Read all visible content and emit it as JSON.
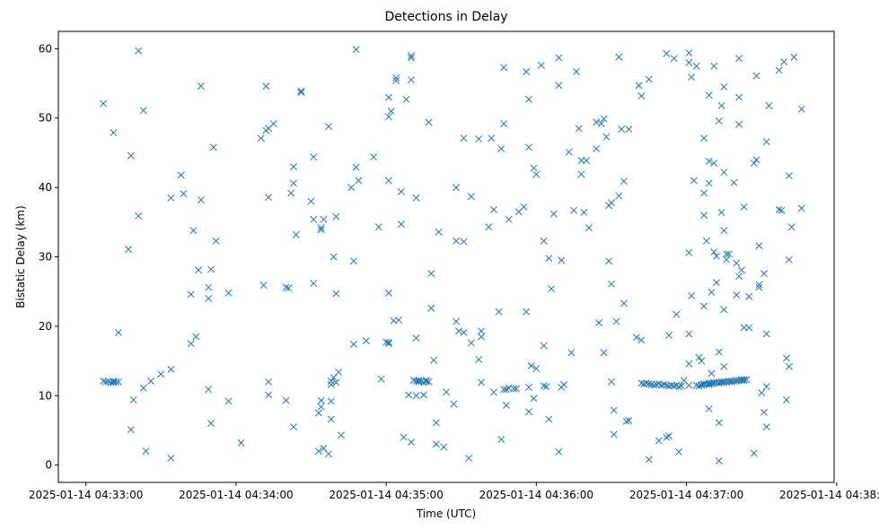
{
  "chart_data": {
    "type": "scatter",
    "title": "Detections in Delay",
    "xlabel": "Time (UTC)",
    "ylabel": "Bistatic Delay (km)",
    "x_unit": "seconds after 2025-01-14 04:33:00 UTC",
    "xlim": [
      -11,
      299
    ],
    "ylim": [
      -2.5,
      62.5
    ],
    "x_ticks": [
      {
        "value": 0,
        "label": "2025-01-14 04:33:00"
      },
      {
        "value": 60,
        "label": "2025-01-14 04:34:00"
      },
      {
        "value": 120,
        "label": "2025-01-14 04:35:00"
      },
      {
        "value": 180,
        "label": "2025-01-14 04:36:00"
      },
      {
        "value": 240,
        "label": "2025-01-14 04:37:00"
      },
      {
        "value": 300,
        "label": "2025-01-14 04:38:00"
      }
    ],
    "y_ticks": [
      0,
      10,
      20,
      30,
      40,
      50,
      60
    ],
    "marker": "x",
    "color": "#1f77b4",
    "grid": false,
    "points": [
      [
        7,
        52.1
      ],
      [
        11,
        47.9
      ],
      [
        13,
        19.1
      ],
      [
        17,
        31.1
      ],
      [
        18,
        44.6
      ],
      [
        18,
        5.1
      ],
      [
        19,
        9.4
      ],
      [
        21,
        59.7
      ],
      [
        21,
        35.9
      ],
      [
        23,
        51.1
      ],
      [
        23,
        11.1
      ],
      [
        24,
        2
      ],
      [
        26,
        12.1
      ],
      [
        30,
        13.1
      ],
      [
        34,
        1
      ],
      [
        34,
        38.5
      ],
      [
        34,
        13.8
      ],
      [
        38,
        41.8
      ],
      [
        39,
        39.1
      ],
      [
        42,
        17.5
      ],
      [
        42,
        24.6
      ],
      [
        43,
        33.8
      ],
      [
        44,
        18.5
      ],
      [
        45,
        28.1
      ],
      [
        46,
        38.2
      ],
      [
        46,
        54.6
      ],
      [
        49,
        25.6
      ],
      [
        49,
        24
      ],
      [
        49,
        10.9
      ],
      [
        50,
        28.2
      ],
      [
        50,
        6
      ],
      [
        51,
        45.8
      ],
      [
        52,
        32.3
      ],
      [
        57,
        24.8
      ],
      [
        57,
        9.2
      ],
      [
        62,
        3.2
      ],
      [
        70,
        47.1
      ],
      [
        71,
        25.9
      ],
      [
        72,
        54.6
      ],
      [
        72,
        48.2
      ],
      [
        73,
        48.5
      ],
      [
        73,
        38.6
      ],
      [
        73,
        12
      ],
      [
        73,
        10.1
      ],
      [
        75,
        49.2
      ],
      [
        80,
        9.3
      ],
      [
        80,
        25.6
      ],
      [
        81,
        25.5
      ],
      [
        82,
        39.2
      ],
      [
        83,
        43
      ],
      [
        83,
        40.6
      ],
      [
        83,
        5.5
      ],
      [
        84,
        33.2
      ],
      [
        86,
        53.9
      ],
      [
        86,
        53.7
      ],
      [
        90,
        38
      ],
      [
        91,
        44.4
      ],
      [
        91,
        35.4
      ],
      [
        91,
        26.2
      ],
      [
        93,
        2
      ],
      [
        93,
        7.5
      ],
      [
        94,
        34.2
      ],
      [
        94,
        33.9
      ],
      [
        94,
        9.3
      ],
      [
        94,
        8.4
      ],
      [
        95,
        2.4
      ],
      [
        95,
        35.4
      ],
      [
        97,
        1.6
      ],
      [
        97,
        48.8
      ],
      [
        98,
        12.1
      ],
      [
        98,
        11.6
      ],
      [
        98,
        9.2
      ],
      [
        98,
        6.6
      ],
      [
        99,
        30
      ],
      [
        99,
        12.6
      ],
      [
        100,
        24.7
      ],
      [
        100,
        35.8
      ],
      [
        100,
        11.9
      ],
      [
        101,
        13.4
      ],
      [
        102,
        4.3
      ],
      [
        106,
        40
      ],
      [
        107,
        17.4
      ],
      [
        107,
        29.4
      ],
      [
        108,
        59.9
      ],
      [
        108,
        42.9
      ],
      [
        109,
        41
      ],
      [
        112,
        17.9
      ],
      [
        115,
        44.4
      ],
      [
        117,
        34.3
      ],
      [
        118,
        12.4
      ],
      [
        120,
        17.7
      ],
      [
        121,
        17.5
      ],
      [
        121,
        17.7
      ],
      [
        121,
        53
      ],
      [
        121,
        50.2
      ],
      [
        121,
        41
      ],
      [
        121,
        24.8
      ],
      [
        122,
        51
      ],
      [
        123,
        20.8
      ],
      [
        124,
        55.8
      ],
      [
        124,
        55.4
      ],
      [
        125,
        20.9
      ],
      [
        126,
        39.4
      ],
      [
        126,
        34.7
      ],
      [
        127,
        4
      ],
      [
        128,
        52.7
      ],
      [
        129,
        10.1
      ],
      [
        130,
        59
      ],
      [
        130,
        58.7
      ],
      [
        130,
        55.5
      ],
      [
        130,
        3.3
      ],
      [
        132,
        38.5
      ],
      [
        132,
        10
      ],
      [
        132,
        18.3
      ],
      [
        135,
        10.1
      ],
      [
        137,
        49.4
      ],
      [
        138,
        27.6
      ],
      [
        138,
        22.6
      ],
      [
        139,
        15.1
      ],
      [
        140,
        6.1
      ],
      [
        140,
        3
      ],
      [
        141,
        33.6
      ],
      [
        143,
        2.6
      ],
      [
        144,
        10.5
      ],
      [
        147,
        8.8
      ],
      [
        148,
        40
      ],
      [
        148,
        32.3
      ],
      [
        148,
        20.7
      ],
      [
        149,
        19.3
      ],
      [
        151,
        47.1
      ],
      [
        151,
        32.2
      ],
      [
        151,
        19.1
      ],
      [
        153,
        1
      ],
      [
        154,
        38.7
      ],
      [
        154,
        17.6
      ],
      [
        157,
        47
      ],
      [
        157,
        15.2
      ],
      [
        158,
        19.3
      ],
      [
        158,
        18.5
      ],
      [
        158,
        11.9
      ],
      [
        161,
        34.3
      ],
      [
        162,
        47.1
      ],
      [
        163,
        36.8
      ],
      [
        163,
        10.5
      ],
      [
        165,
        22.1
      ],
      [
        166,
        45.6
      ],
      [
        166,
        3.7
      ],
      [
        167,
        49.2
      ],
      [
        167,
        57.3
      ],
      [
        167,
        10.9
      ],
      [
        168,
        8.6
      ],
      [
        168,
        10.9
      ],
      [
        169,
        35.4
      ],
      [
        169,
        11.1
      ],
      [
        171,
        11
      ],
      [
        172,
        11
      ],
      [
        173,
        36.5
      ],
      [
        175,
        37.2
      ],
      [
        176,
        22.1
      ],
      [
        176,
        56.7
      ],
      [
        177,
        45.8
      ],
      [
        177,
        52.7
      ],
      [
        177,
        7.7
      ],
      [
        177,
        11.2
      ],
      [
        178,
        14.3
      ],
      [
        179,
        42.8
      ],
      [
        179,
        9.6
      ],
      [
        180,
        41.9
      ],
      [
        180,
        13.9
      ],
      [
        182,
        57.6
      ],
      [
        183,
        32.3
      ],
      [
        183,
        17.2
      ],
      [
        183,
        11.4
      ],
      [
        184,
        11.3
      ],
      [
        185,
        29.8
      ],
      [
        185,
        6.6
      ],
      [
        186,
        25.4
      ],
      [
        187,
        36.2
      ],
      [
        189,
        54.7
      ],
      [
        189,
        58.7
      ],
      [
        189,
        1.9
      ],
      [
        190,
        29.5
      ],
      [
        190,
        11.2
      ],
      [
        191,
        11.6
      ],
      [
        193,
        45.1
      ],
      [
        194,
        16.2
      ],
      [
        195,
        36.7
      ],
      [
        196,
        56.7
      ],
      [
        197,
        48.5
      ],
      [
        198,
        43.9
      ],
      [
        198,
        41.9
      ],
      [
        199,
        36.4
      ],
      [
        200,
        43.9
      ],
      [
        201,
        34.2
      ],
      [
        204,
        49.4
      ],
      [
        204,
        45.6
      ],
      [
        205,
        20.5
      ],
      [
        206,
        49.2
      ],
      [
        207,
        49.9
      ],
      [
        207,
        16.2
      ],
      [
        208,
        47.3
      ],
      [
        209,
        37.4
      ],
      [
        209,
        29.4
      ],
      [
        210,
        37.8
      ],
      [
        210,
        26.1
      ],
      [
        210,
        12
      ],
      [
        211,
        4.4
      ],
      [
        211,
        7.9
      ],
      [
        212,
        20.7
      ],
      [
        213,
        38.8
      ],
      [
        213,
        58.8
      ],
      [
        214,
        48.4
      ],
      [
        215,
        23.3
      ],
      [
        215,
        40.9
      ],
      [
        216,
        6.3
      ],
      [
        217,
        6.4
      ],
      [
        217,
        48.4
      ],
      [
        220,
        18.4
      ],
      [
        221,
        54.7
      ],
      [
        222,
        53.2
      ],
      [
        222,
        18
      ],
      [
        225,
        55.6
      ],
      [
        225,
        0.8
      ],
      [
        229,
        3.5
      ],
      [
        232,
        59.3
      ],
      [
        232,
        4
      ],
      [
        233,
        4.2
      ],
      [
        233,
        18.7
      ],
      [
        235,
        58.6
      ],
      [
        236,
        21.7
      ],
      [
        237,
        1.9
      ],
      [
        239,
        12.2
      ],
      [
        241,
        59.4
      ],
      [
        241,
        11.5
      ],
      [
        241,
        58
      ],
      [
        241,
        30.6
      ],
      [
        241,
        18.9
      ],
      [
        241,
        14.6
      ],
      [
        242,
        55.9
      ],
      [
        242,
        24.4
      ],
      [
        243,
        41
      ],
      [
        244,
        57.5
      ],
      [
        245,
        15.5
      ],
      [
        246,
        15
      ],
      [
        247,
        47.1
      ],
      [
        247,
        39.2
      ],
      [
        247,
        36
      ],
      [
        247,
        22.9
      ],
      [
        248,
        32.3
      ],
      [
        249,
        53.3
      ],
      [
        249,
        43.8
      ],
      [
        249,
        40.6
      ],
      [
        249,
        8.1
      ],
      [
        250,
        24.9
      ],
      [
        250,
        13.2
      ],
      [
        251,
        57.5
      ],
      [
        251,
        43.5
      ],
      [
        251,
        30.7
      ],
      [
        252,
        30.1
      ],
      [
        252,
        26.3
      ],
      [
        253,
        49.6
      ],
      [
        253,
        16.3
      ],
      [
        253,
        6.1
      ],
      [
        253,
        0.6
      ],
      [
        254,
        36.4
      ],
      [
        254,
        51.8
      ],
      [
        255,
        54.5
      ],
      [
        255,
        42.2
      ],
      [
        255,
        33.8
      ],
      [
        255,
        22.4
      ],
      [
        255,
        14.2
      ],
      [
        256,
        30.4
      ],
      [
        256,
        29.6
      ],
      [
        257,
        30.4
      ],
      [
        259,
        40.7
      ],
      [
        260,
        24.5
      ],
      [
        260,
        29.1
      ],
      [
        261,
        58.6
      ],
      [
        261,
        53
      ],
      [
        261,
        49.1
      ],
      [
        261,
        27.2
      ],
      [
        262,
        28.1
      ],
      [
        263,
        37.2
      ],
      [
        263,
        19.8
      ],
      [
        265,
        19.8
      ],
      [
        265,
        24.3
      ],
      [
        267,
        1.7
      ],
      [
        267,
        43.5
      ],
      [
        268,
        56.1
      ],
      [
        268,
        44
      ],
      [
        269,
        26
      ],
      [
        269,
        25.6
      ],
      [
        269,
        31.6
      ],
      [
        270,
        10.4
      ],
      [
        271,
        27.6
      ],
      [
        271,
        7.6
      ],
      [
        272,
        18.9
      ],
      [
        272,
        5.5
      ],
      [
        272,
        11.3
      ],
      [
        272,
        46.6
      ],
      [
        273,
        51.8
      ],
      [
        277,
        56.9
      ],
      [
        277,
        36.8
      ],
      [
        278,
        36.7
      ],
      [
        279,
        58.1
      ],
      [
        280,
        15.4
      ],
      [
        280,
        9.4
      ],
      [
        281,
        29.6
      ],
      [
        281,
        41.7
      ],
      [
        281,
        14.2
      ],
      [
        282,
        34.3
      ],
      [
        283,
        58.8
      ],
      [
        286,
        51.3
      ],
      [
        286,
        37
      ],
      [
        7,
        12.1
      ],
      [
        8,
        12
      ],
      [
        9,
        12
      ],
      [
        10,
        11.9
      ],
      [
        11,
        12.1
      ],
      [
        11,
        11.9
      ],
      [
        12,
        12
      ],
      [
        13,
        12
      ],
      [
        131,
        12.2
      ],
      [
        132,
        12.1
      ],
      [
        133,
        12
      ],
      [
        133,
        12.2
      ],
      [
        134,
        12.1
      ],
      [
        135,
        11.9
      ],
      [
        136,
        12
      ],
      [
        136,
        12.2
      ],
      [
        137,
        12
      ],
      [
        222,
        11.8
      ],
      [
        223,
        11.7
      ],
      [
        224,
        11.8
      ],
      [
        225,
        11.7
      ],
      [
        226,
        11.6
      ],
      [
        227,
        11.5
      ],
      [
        228,
        11.6
      ],
      [
        229,
        11.7
      ],
      [
        230,
        11.5
      ],
      [
        231,
        11.6
      ],
      [
        232,
        11.5
      ],
      [
        233,
        11.4
      ],
      [
        234,
        11.5
      ],
      [
        235,
        11.4
      ],
      [
        236,
        11.5
      ],
      [
        237,
        11.3
      ],
      [
        238,
        11.4
      ],
      [
        244,
        11.5
      ],
      [
        245,
        11.4
      ],
      [
        246,
        11.6
      ],
      [
        246,
        11.5
      ],
      [
        247,
        11.6
      ],
      [
        247,
        11.7
      ],
      [
        248,
        11.7
      ],
      [
        249,
        11.8
      ],
      [
        249,
        11.6
      ],
      [
        250,
        11.8
      ],
      [
        250,
        11.7
      ],
      [
        251,
        11.8
      ],
      [
        251,
        11.9
      ],
      [
        252,
        11.9
      ],
      [
        253,
        11.8
      ],
      [
        253,
        11.9
      ],
      [
        254,
        12
      ],
      [
        254,
        11.9
      ],
      [
        255,
        12
      ],
      [
        255,
        11.9
      ],
      [
        256,
        12
      ],
      [
        257,
        12
      ],
      [
        257,
        12.1
      ],
      [
        258,
        12
      ],
      [
        258,
        12.1
      ],
      [
        259,
        12.1
      ],
      [
        260,
        12.1
      ],
      [
        260,
        12.2
      ],
      [
        261,
        12.2
      ],
      [
        262,
        12.2
      ],
      [
        262,
        12.3
      ],
      [
        263,
        12.2
      ],
      [
        263,
        12.3
      ],
      [
        264,
        12.3
      ]
    ]
  }
}
